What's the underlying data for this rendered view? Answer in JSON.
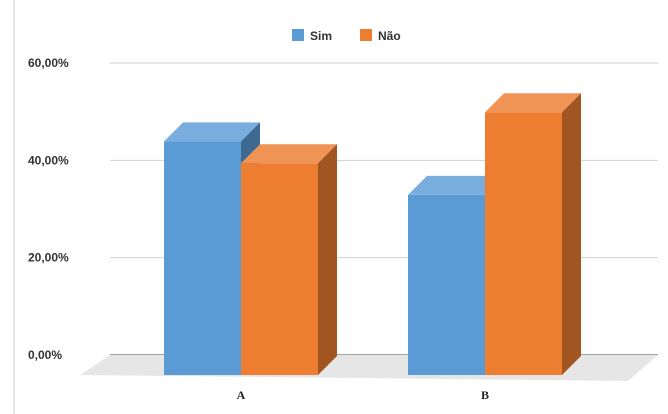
{
  "chart_data": {
    "type": "bar",
    "categories": [
      "A",
      "B"
    ],
    "series": [
      {
        "name": "Sim",
        "values": [
          48,
          37
        ],
        "color": "#5B9BD5"
      },
      {
        "name": "Não",
        "values": [
          43.5,
          54
        ],
        "color": "#ED7D31"
      }
    ],
    "ylim": [
      0,
      60
    ],
    "yticks": [
      0,
      20,
      40,
      60
    ],
    "ytick_labels": [
      "0,00%",
      "20,00%",
      "40,00%",
      "60,00%"
    ],
    "legend_position": "top-center",
    "grid": true,
    "style": "3d-clustered-column"
  }
}
